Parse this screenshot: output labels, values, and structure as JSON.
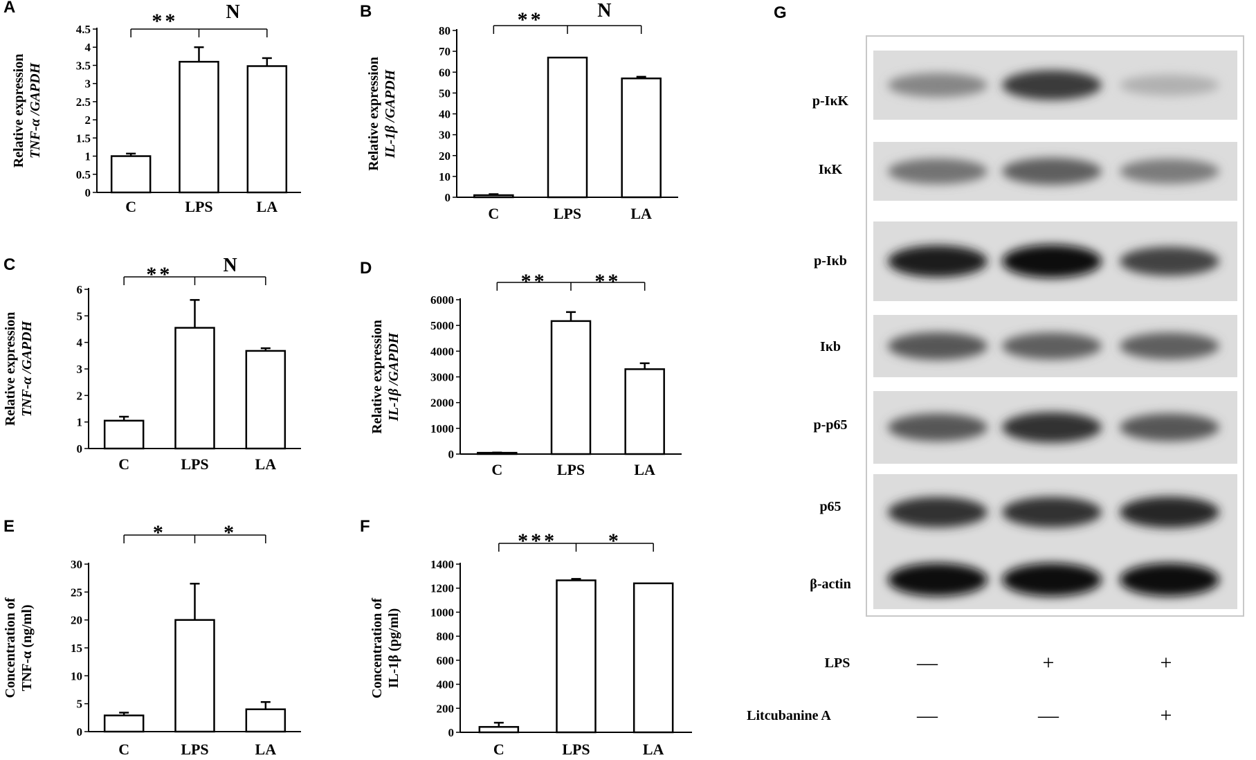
{
  "chart_data": [
    {
      "panel": "A",
      "type": "bar",
      "categories": [
        "C",
        "LPS",
        "LA"
      ],
      "values": [
        1.0,
        3.6,
        3.48
      ],
      "errors": [
        0.07,
        0.4,
        0.22
      ],
      "ylabel_line1": "Relative expression",
      "ylabel_line2": "TNF-α /GAPDH",
      "yticks": [
        "0",
        "0.5",
        "1",
        "1.5",
        "2",
        "2.5",
        "3",
        "3.5",
        "4",
        "4.5"
      ],
      "ylim": [
        0,
        4.5
      ],
      "significance": [
        "**",
        "N"
      ]
    },
    {
      "panel": "B",
      "type": "bar",
      "categories": [
        "C",
        "LPS",
        "LA"
      ],
      "values": [
        1,
        67,
        57
      ],
      "errors": [
        0.5,
        0,
        0.8
      ],
      "ylabel_line1": "Relative expression",
      "ylabel_line2": "IL-1β /GAPDH",
      "yticks": [
        "0",
        "10",
        "20",
        "30",
        "40",
        "50",
        "60",
        "70",
        "80"
      ],
      "ylim": [
        0,
        80
      ],
      "significance": [
        "**",
        "N"
      ]
    },
    {
      "panel": "C",
      "type": "bar",
      "categories": [
        "C",
        "LPS",
        "LA"
      ],
      "values": [
        1.05,
        4.55,
        3.68
      ],
      "errors": [
        0.15,
        1.05,
        0.1
      ],
      "ylabel_line1": "Relative expression",
      "ylabel_line2": "TNF-α /GAPDH",
      "yticks": [
        "0",
        "1",
        "2",
        "3",
        "4",
        "5",
        "6"
      ],
      "ylim": [
        0,
        6
      ],
      "significance": [
        "**",
        "N"
      ]
    },
    {
      "panel": "D",
      "type": "bar",
      "categories": [
        "C",
        "LPS",
        "LA"
      ],
      "values": [
        50,
        5170,
        3300
      ],
      "errors": [
        10,
        350,
        230
      ],
      "ylabel_line1": "Relative expression",
      "ylabel_line2": "IL-1β /GAPDH",
      "yticks": [
        "0",
        "1000",
        "2000",
        "3000",
        "4000",
        "5000",
        "6000"
      ],
      "ylim": [
        0,
        6000
      ],
      "significance": [
        "**",
        "**"
      ]
    },
    {
      "panel": "E",
      "type": "bar",
      "categories": [
        "C",
        "LPS",
        "LA"
      ],
      "values": [
        2.9,
        20.0,
        4.0
      ],
      "errors": [
        0.5,
        6.5,
        1.3
      ],
      "ylabel_line1": "Concentration of",
      "ylabel_line2": "TNF-α (ng/ml)",
      "yticks": [
        "0",
        "5",
        "10",
        "15",
        "20",
        "25",
        "30"
      ],
      "ylim": [
        0,
        30
      ],
      "significance": [
        "*",
        "*"
      ]
    },
    {
      "panel": "F",
      "type": "bar",
      "categories": [
        "C",
        "LPS",
        "LA"
      ],
      "values": [
        45,
        1265,
        1240
      ],
      "errors": [
        35,
        12,
        0
      ],
      "ylabel_line1": "Concentration of",
      "ylabel_line2": "IL-1β (pg/ml)",
      "yticks": [
        "0",
        "200",
        "400",
        "600",
        "800",
        "1000",
        "1200",
        "1400"
      ],
      "ylim": [
        0,
        1400
      ],
      "significance": [
        "***",
        "*"
      ]
    }
  ],
  "blot": {
    "panel": "G",
    "rows": [
      {
        "label": "p-IκK",
        "intensity": [
          0.35,
          0.75,
          0.12
        ]
      },
      {
        "label": "IκK",
        "intensity": [
          0.45,
          0.55,
          0.4
        ]
      },
      {
        "label": "p-Iκb",
        "intensity": [
          0.9,
          1.0,
          0.7
        ]
      },
      {
        "label": "Iκb",
        "intensity": [
          0.6,
          0.55,
          0.55
        ]
      },
      {
        "label": "p-p65",
        "intensity": [
          0.6,
          0.8,
          0.6
        ]
      },
      {
        "label": "p65",
        "intensity": [
          0.8,
          0.8,
          0.85
        ]
      },
      {
        "label": "β-actin",
        "intensity": [
          1.0,
          1.0,
          1.0
        ]
      }
    ],
    "treatments": [
      {
        "label": "LPS",
        "symbols": [
          "—",
          "+",
          "+"
        ]
      },
      {
        "label": "Litcubanine A",
        "symbols": [
          "—",
          "—",
          "+"
        ]
      }
    ]
  }
}
